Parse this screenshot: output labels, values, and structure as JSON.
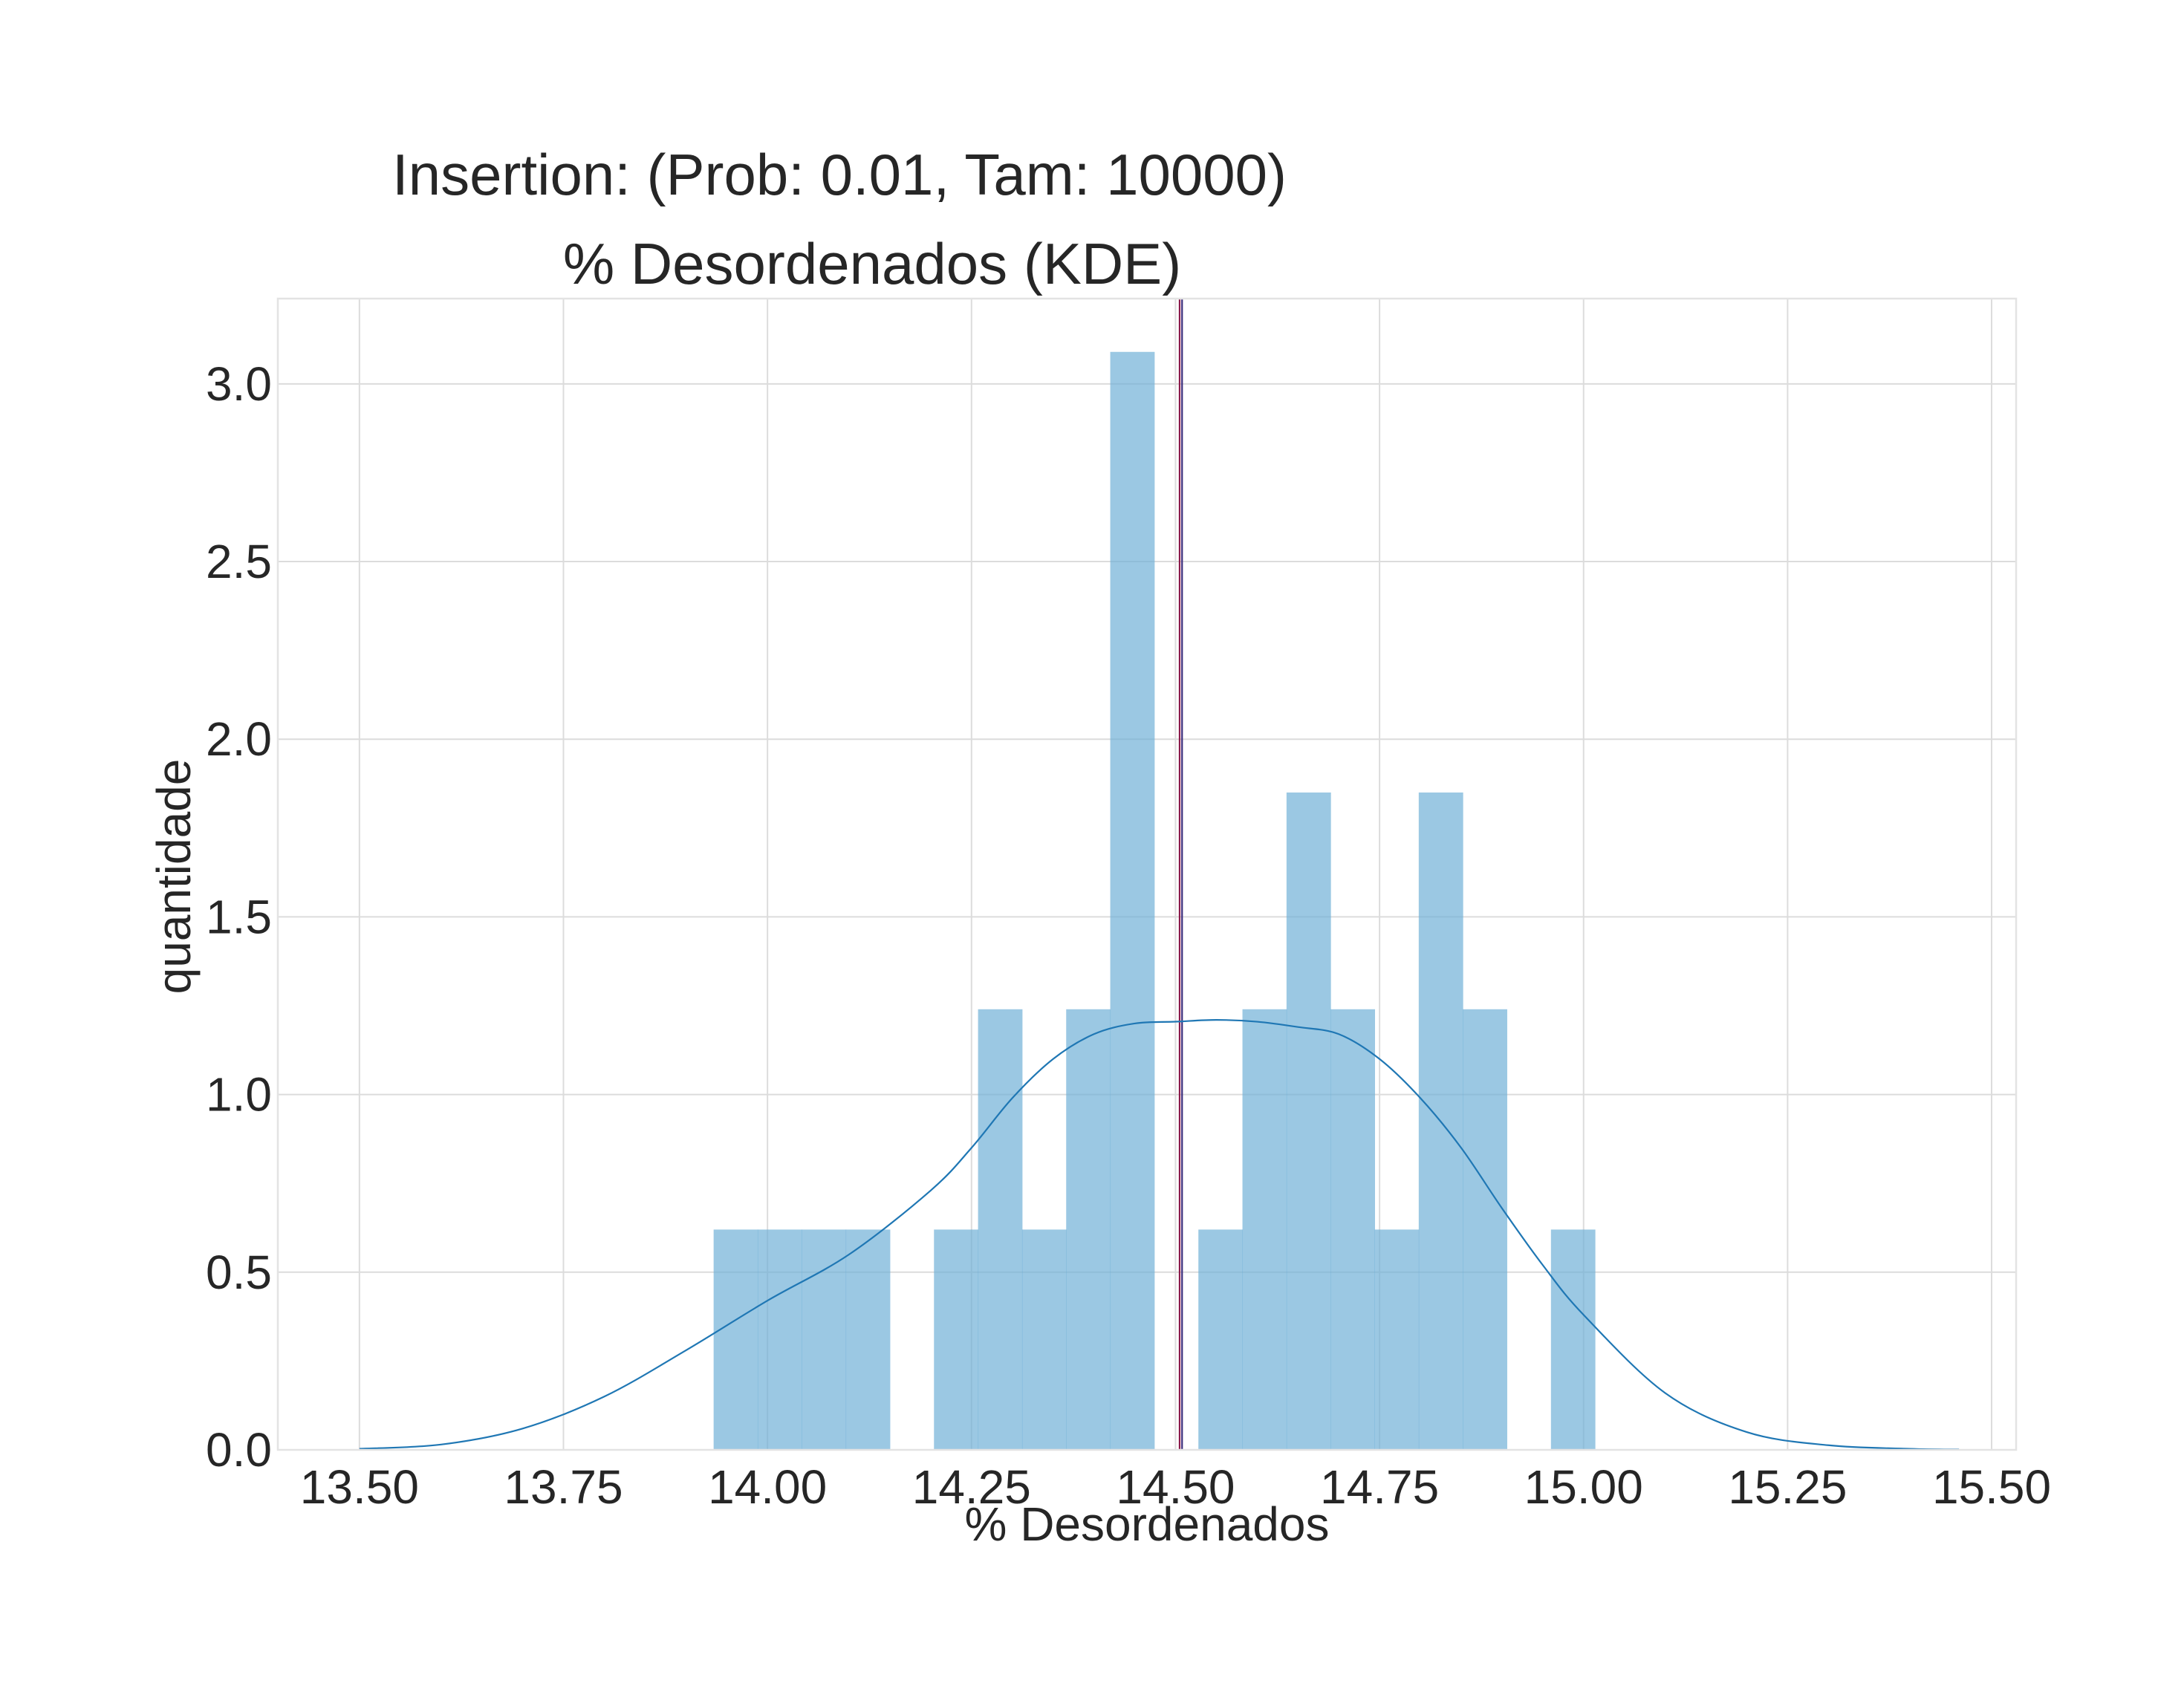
{
  "chart_data": {
    "type": "bar",
    "title": "Insertion: (Prob: 0.01, Tam: 10000)",
    "subtitle": "% Desordenados (KDE)",
    "xlabel": "% Desordenados",
    "ylabel": "quantidade",
    "xlim": [
      13.4,
      15.53
    ],
    "ylim": [
      0.0,
      3.24
    ],
    "x_ticks": [
      13.5,
      13.75,
      14.0,
      14.25,
      14.5,
      14.75,
      15.0,
      15.25,
      15.5
    ],
    "x_tick_labels": [
      "13.50",
      "13.75",
      "14.00",
      "14.25",
      "14.50",
      "14.75",
      "15.00",
      "15.25",
      "15.50"
    ],
    "y_ticks": [
      0.0,
      0.5,
      1.0,
      1.5,
      2.0,
      2.5,
      3.0
    ],
    "y_tick_labels": [
      "0.0",
      "0.5",
      "1.0",
      "1.5",
      "2.0",
      "2.5",
      "3.0"
    ],
    "grid": true,
    "histogram": {
      "bin_width": 0.0539,
      "bins": [
        {
          "left": 13.934,
          "height": 0.62
        },
        {
          "left": 13.988,
          "height": 0.62
        },
        {
          "left": 14.042,
          "height": 0.62
        },
        {
          "left": 14.096,
          "height": 0.62
        },
        {
          "left": 14.204,
          "height": 0.62
        },
        {
          "left": 14.258,
          "height": 1.24
        },
        {
          "left": 14.312,
          "height": 0.62
        },
        {
          "left": 14.366,
          "height": 1.24
        },
        {
          "left": 14.42,
          "height": 3.09
        },
        {
          "left": 14.528,
          "height": 0.62
        },
        {
          "left": 14.582,
          "height": 1.24
        },
        {
          "left": 14.636,
          "height": 1.85
        },
        {
          "left": 14.69,
          "height": 1.24
        },
        {
          "left": 14.744,
          "height": 0.62
        },
        {
          "left": 14.798,
          "height": 1.85
        },
        {
          "left": 14.852,
          "height": 1.24
        },
        {
          "left": 14.96,
          "height": 0.62
        }
      ]
    },
    "kde": {
      "x": [
        13.5,
        13.6,
        13.7,
        13.8,
        13.9,
        14.0,
        14.1,
        14.2,
        14.25,
        14.3,
        14.35,
        14.4,
        14.45,
        14.5,
        14.55,
        14.6,
        14.65,
        14.7,
        14.75,
        14.8,
        14.85,
        14.9,
        14.95,
        15.0,
        15.1,
        15.2,
        15.3,
        15.4,
        15.46
      ],
      "y": [
        0.003,
        0.015,
        0.06,
        0.15,
        0.28,
        0.42,
        0.55,
        0.73,
        0.85,
        0.99,
        1.1,
        1.17,
        1.2,
        1.205,
        1.21,
        1.205,
        1.19,
        1.17,
        1.1,
        0.99,
        0.85,
        0.68,
        0.52,
        0.38,
        0.16,
        0.05,
        0.013,
        0.003,
        0.001
      ]
    },
    "vertical_lines": [
      {
        "x": 14.505,
        "color": "#8b1a4a"
      },
      {
        "x": 14.508,
        "color": "#3a2a7a"
      }
    ],
    "colors": {
      "bar": "#6baed6",
      "bar_opacity": 0.68,
      "kde_line": "#1f77b4"
    }
  }
}
